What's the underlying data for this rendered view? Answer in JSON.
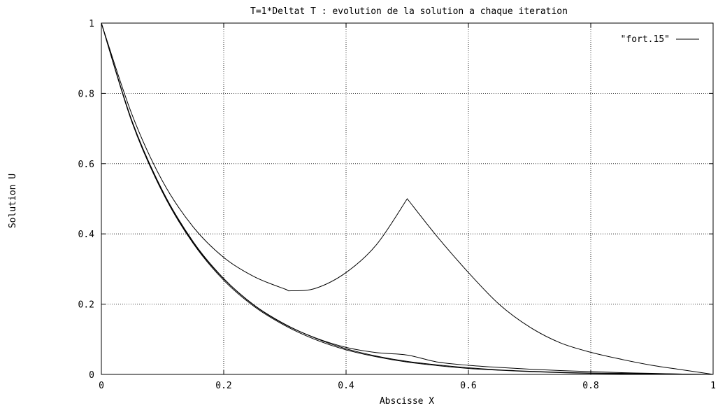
{
  "chart_data": {
    "type": "line",
    "title": "T=1*Deltat T : evolution de la solution a chaque iteration",
    "xlabel": "Abscisse X",
    "ylabel": "Solution U",
    "xlim": [
      0,
      1
    ],
    "ylim": [
      0,
      1
    ],
    "x_ticks": [
      "0",
      "0.2",
      "0.4",
      "0.6",
      "0.8",
      "1"
    ],
    "y_ticks": [
      "0",
      "0.2",
      "0.4",
      "0.6",
      "0.8",
      "1"
    ],
    "grid": true,
    "legend_position": "top-right",
    "legend": [
      "\"fort.15\""
    ],
    "series": [
      {
        "name": "\"fort.15\"",
        "segments": [
          {
            "x": [
              0,
              0.05,
              0.1,
              0.15,
              0.2,
              0.25,
              0.3,
              0.31,
              0.35,
              0.4,
              0.45,
              0.5,
              0.55,
              0.6,
              0.65,
              0.7,
              0.75,
              0.8,
              0.85,
              0.9,
              0.95,
              1.0
            ],
            "y": [
              1.0,
              0.74,
              0.55,
              0.42,
              0.333,
              0.278,
              0.243,
              0.238,
              0.245,
              0.29,
              0.37,
              0.5,
              0.39,
              0.29,
              0.2,
              0.135,
              0.09,
              0.063,
              0.043,
              0.026,
              0.013,
              0.0
            ]
          },
          {
            "x": [
              0,
              0.05,
              0.1,
              0.15,
              0.2,
              0.25,
              0.3,
              0.35,
              0.4,
              0.45,
              0.5,
              0.55,
              0.6,
              0.65,
              0.7,
              0.75,
              0.8,
              0.85,
              0.9,
              0.95,
              1.0
            ],
            "y": [
              1.0,
              0.72,
              0.52,
              0.375,
              0.272,
              0.196,
              0.142,
              0.104,
              0.077,
              0.062,
              0.055,
              0.035,
              0.026,
              0.02,
              0.015,
              0.011,
              0.008,
              0.005,
              0.003,
              0.001,
              0.0
            ]
          },
          {
            "x": [
              0,
              0.05,
              0.1,
              0.15,
              0.2,
              0.25,
              0.3,
              0.35,
              0.4,
              0.45,
              0.5,
              0.55,
              0.6,
              0.65,
              0.7,
              0.75,
              0.8,
              0.85,
              0.9,
              0.95,
              1.0
            ],
            "y": [
              1.0,
              0.722,
              0.523,
              0.378,
              0.273,
              0.197,
              0.143,
              0.103,
              0.073,
              0.052,
              0.037,
              0.027,
              0.019,
              0.013,
              0.009,
              0.006,
              0.004,
              0.003,
              0.002,
              0.001,
              0.0
            ]
          },
          {
            "x": [
              0,
              0.05,
              0.1,
              0.15,
              0.2,
              0.25,
              0.3,
              0.35,
              0.4,
              0.45,
              0.5,
              0.55,
              0.6,
              0.65,
              0.7,
              0.75,
              0.8,
              0.85,
              0.9,
              0.95,
              1.0
            ],
            "y": [
              1.0,
              0.718,
              0.518,
              0.373,
              0.268,
              0.193,
              0.139,
              0.099,
              0.07,
              0.05,
              0.035,
              0.025,
              0.017,
              0.012,
              0.008,
              0.005,
              0.003,
              0.002,
              0.001,
              0.0005,
              0.0
            ]
          }
        ]
      }
    ]
  }
}
